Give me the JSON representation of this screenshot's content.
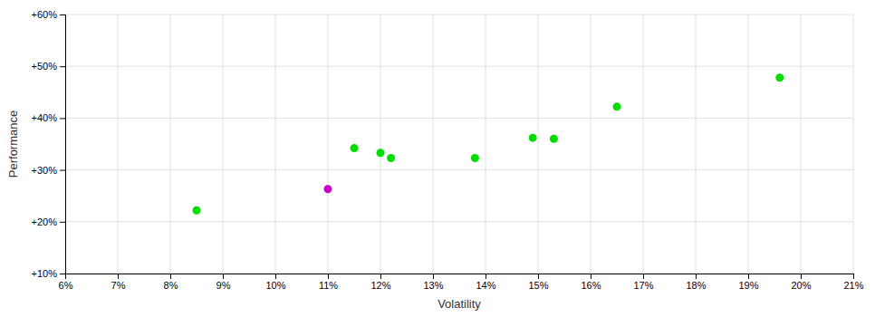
{
  "chart_data": {
    "type": "scatter",
    "x_label": "Volatility",
    "y_label": "Performance",
    "x": [
      0.085,
      0.11,
      0.115,
      0.12,
      0.122,
      0.138,
      0.149,
      0.153,
      0.165,
      0.196
    ],
    "values": [
      0.222,
      0.263,
      0.342,
      0.333,
      0.323,
      0.323,
      0.362,
      0.36,
      0.422,
      0.478
    ],
    "colors": [
      "#00dd00",
      "#cc00cc",
      "#00dd00",
      "#00dd00",
      "#00dd00",
      "#00dd00",
      "#00dd00",
      "#00dd00",
      "#00dd00",
      "#00dd00"
    ],
    "xlim": [
      0.06,
      0.21
    ],
    "ylim": [
      0.1,
      0.6
    ],
    "xticks": [
      {
        "value": 0.06,
        "label": "6%"
      },
      {
        "value": 0.07,
        "label": "7%"
      },
      {
        "value": 0.08,
        "label": "8%"
      },
      {
        "value": 0.09,
        "label": "9%"
      },
      {
        "value": 0.1,
        "label": "10%"
      },
      {
        "value": 0.11,
        "label": "11%"
      },
      {
        "value": 0.12,
        "label": "12%"
      },
      {
        "value": 0.13,
        "label": "13%"
      },
      {
        "value": 0.14,
        "label": "14%"
      },
      {
        "value": 0.15,
        "label": "15%"
      },
      {
        "value": 0.16,
        "label": "16%"
      },
      {
        "value": 0.17,
        "label": "17%"
      },
      {
        "value": 0.18,
        "label": "18%"
      },
      {
        "value": 0.19,
        "label": "19%"
      },
      {
        "value": 0.2,
        "label": "20%"
      },
      {
        "value": 0.21,
        "label": "21%"
      }
    ],
    "yticks": [
      {
        "value": 0.1,
        "label": "+10%"
      },
      {
        "value": 0.2,
        "label": "+20%"
      },
      {
        "value": 0.3,
        "label": "+30%"
      },
      {
        "value": 0.4,
        "label": "+40%"
      },
      {
        "value": 0.5,
        "label": "+50%"
      },
      {
        "value": 0.6,
        "label": "+60%"
      }
    ],
    "grid": true
  }
}
